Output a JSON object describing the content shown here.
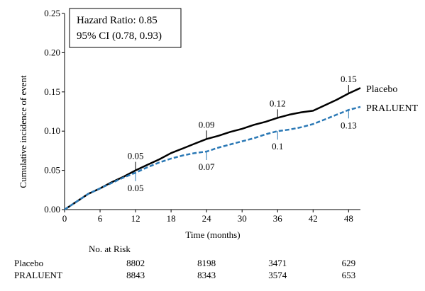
{
  "chart_data": {
    "type": "line",
    "ylabel": "Cumulative incidence of event",
    "xlabel": "Time (months)",
    "xlim": [
      0,
      50
    ],
    "ylim": [
      0,
      0.25
    ],
    "x_ticks": [
      "0",
      "6",
      "12",
      "18",
      "24",
      "30",
      "36",
      "42",
      "48"
    ],
    "y_ticks": [
      "0.00",
      "0.05",
      "0.10",
      "0.15",
      "0.20",
      "0.25"
    ],
    "annotation": {
      "line1": "Hazard Ratio: 0.85",
      "line2": "95% CI (0.78, 0.93)"
    },
    "series": [
      {
        "name": "Placebo",
        "color": "#000000",
        "style": "solid",
        "points": [
          [
            0,
            0
          ],
          [
            1,
            0.005
          ],
          [
            2,
            0.01
          ],
          [
            3,
            0.015
          ],
          [
            4,
            0.02
          ],
          [
            6,
            0.027
          ],
          [
            8,
            0.035
          ],
          [
            10,
            0.042
          ],
          [
            12,
            0.05
          ],
          [
            14,
            0.057
          ],
          [
            16,
            0.064
          ],
          [
            18,
            0.072
          ],
          [
            20,
            0.078
          ],
          [
            22,
            0.084
          ],
          [
            24,
            0.09
          ],
          [
            26,
            0.094
          ],
          [
            28,
            0.099
          ],
          [
            30,
            0.103
          ],
          [
            32,
            0.108
          ],
          [
            34,
            0.112
          ],
          [
            36,
            0.117
          ],
          [
            38,
            0.121
          ],
          [
            40,
            0.124
          ],
          [
            42,
            0.126
          ],
          [
            44,
            0.133
          ],
          [
            46,
            0.14
          ],
          [
            48,
            0.148
          ],
          [
            50,
            0.155
          ]
        ],
        "labels": [
          {
            "x": 12,
            "y": 0.05,
            "text": "0.05"
          },
          {
            "x": 24,
            "y": 0.09,
            "text": "0.09"
          },
          {
            "x": 36,
            "y": 0.12,
            "text": "0.12"
          },
          {
            "x": 48,
            "y": 0.15,
            "text": "0.15"
          }
        ]
      },
      {
        "name": "PRALUENT",
        "color": "#2a78b5",
        "style": "dashed",
        "points": [
          [
            0,
            0
          ],
          [
            1,
            0.005
          ],
          [
            2,
            0.01
          ],
          [
            3,
            0.015
          ],
          [
            4,
            0.02
          ],
          [
            6,
            0.027
          ],
          [
            8,
            0.034
          ],
          [
            10,
            0.041
          ],
          [
            12,
            0.047
          ],
          [
            14,
            0.054
          ],
          [
            16,
            0.06
          ],
          [
            18,
            0.065
          ],
          [
            20,
            0.069
          ],
          [
            22,
            0.072
          ],
          [
            24,
            0.074
          ],
          [
            26,
            0.079
          ],
          [
            28,
            0.083
          ],
          [
            30,
            0.087
          ],
          [
            32,
            0.091
          ],
          [
            34,
            0.096
          ],
          [
            36,
            0.1
          ],
          [
            38,
            0.102
          ],
          [
            40,
            0.105
          ],
          [
            42,
            0.109
          ],
          [
            44,
            0.115
          ],
          [
            46,
            0.121
          ],
          [
            48,
            0.127
          ],
          [
            50,
            0.131
          ]
        ],
        "labels": [
          {
            "x": 12,
            "y": 0.05,
            "text": "0.05"
          },
          {
            "x": 24,
            "y": 0.07,
            "text": "0.07"
          },
          {
            "x": 36,
            "y": 0.1,
            "text": "0.1"
          },
          {
            "x": 48,
            "y": 0.13,
            "text": "0.13"
          }
        ]
      }
    ]
  },
  "risk_table": {
    "title": "No. at Risk",
    "columns_x": [
      12,
      24,
      36,
      48
    ],
    "rows": [
      {
        "label": "Placebo",
        "values": [
          "8802",
          "8198",
          "3471",
          "629"
        ]
      },
      {
        "label": "PRALUENT",
        "values": [
          "8843",
          "8343",
          "3574",
          "653"
        ]
      }
    ]
  }
}
